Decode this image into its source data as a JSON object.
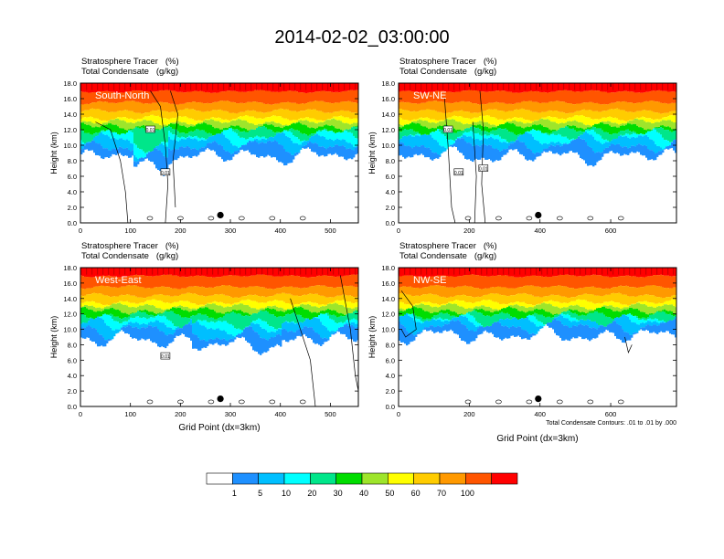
{
  "title": "2014-02-02_03:00:00",
  "panel_header": {
    "line1": "Stratosphere Tracer   (%)",
    "line2": "Total Condensate   (g/kg)"
  },
  "footnote": "Total Condensate Contours: .01 to .01 by .000",
  "colorbar": {
    "labels": [
      "1",
      "5",
      "10",
      "20",
      "30",
      "40",
      "50",
      "60",
      "70",
      "100"
    ],
    "colors": [
      "#ffffff",
      "#1e90ff",
      "#00bfff",
      "#00ffff",
      "#00e68a",
      "#00dd00",
      "#9ee52b",
      "#ffff00",
      "#ffcc00",
      "#ff9900",
      "#ff5500",
      "#ff0000"
    ]
  },
  "chart_data": [
    {
      "type": "heatmap",
      "panel_label": "South-North",
      "xlabel": "",
      "ylabel": "Height (km)",
      "xlim": [
        0,
        556
      ],
      "ylim": [
        0,
        18
      ],
      "xticks": [
        "0",
        "100",
        "200",
        "300",
        "400",
        "500"
      ],
      "yticks": [
        "0.0",
        "2.0",
        "4.0",
        "6.0",
        "8.0",
        "10.0",
        "12.0",
        "14.0",
        "16.0",
        "18.0"
      ],
      "contour_labels": [
        "0.01",
        "0.01"
      ],
      "marker_x": 280
    },
    {
      "type": "heatmap",
      "panel_label": "SW-NE",
      "xlabel": "",
      "ylabel": "Height (km)",
      "xlim": [
        0,
        786
      ],
      "ylim": [
        0,
        18
      ],
      "xticks": [
        "0",
        "200",
        "400",
        "600"
      ],
      "yticks": [
        "0.0",
        "2.0",
        "4.0",
        "6.0",
        "8.0",
        "10.0",
        "12.0",
        "14.0",
        "16.0",
        "18.0"
      ],
      "contour_labels": [
        "0.01",
        "0.01",
        "0.01"
      ],
      "marker_x": 395
    },
    {
      "type": "heatmap",
      "panel_label": "West-East",
      "xlabel": "Grid Point (dx=3km)",
      "ylabel": "Height (km)",
      "xlim": [
        0,
        556
      ],
      "ylim": [
        0,
        18
      ],
      "xticks": [
        "0",
        "100",
        "200",
        "300",
        "400",
        "500"
      ],
      "yticks": [
        "0.0",
        "2.0",
        "4.0",
        "6.0",
        "8.0",
        "10.0",
        "12.0",
        "14.0",
        "16.0",
        "18.0"
      ],
      "contour_labels": [
        "0.01"
      ],
      "marker_x": 280
    },
    {
      "type": "heatmap",
      "panel_label": "NW-SE",
      "xlabel": "Grid Point (dx=3km)",
      "ylabel": "Height (km)",
      "xlim": [
        0,
        786
      ],
      "ylim": [
        0,
        18
      ],
      "xticks": [
        "0",
        "200",
        "400",
        "600"
      ],
      "yticks": [
        "0.0",
        "2.0",
        "4.0",
        "6.0",
        "8.0",
        "10.0",
        "12.0",
        "14.0",
        "16.0",
        "18.0"
      ],
      "contour_labels": [],
      "marker_x": 395
    }
  ]
}
